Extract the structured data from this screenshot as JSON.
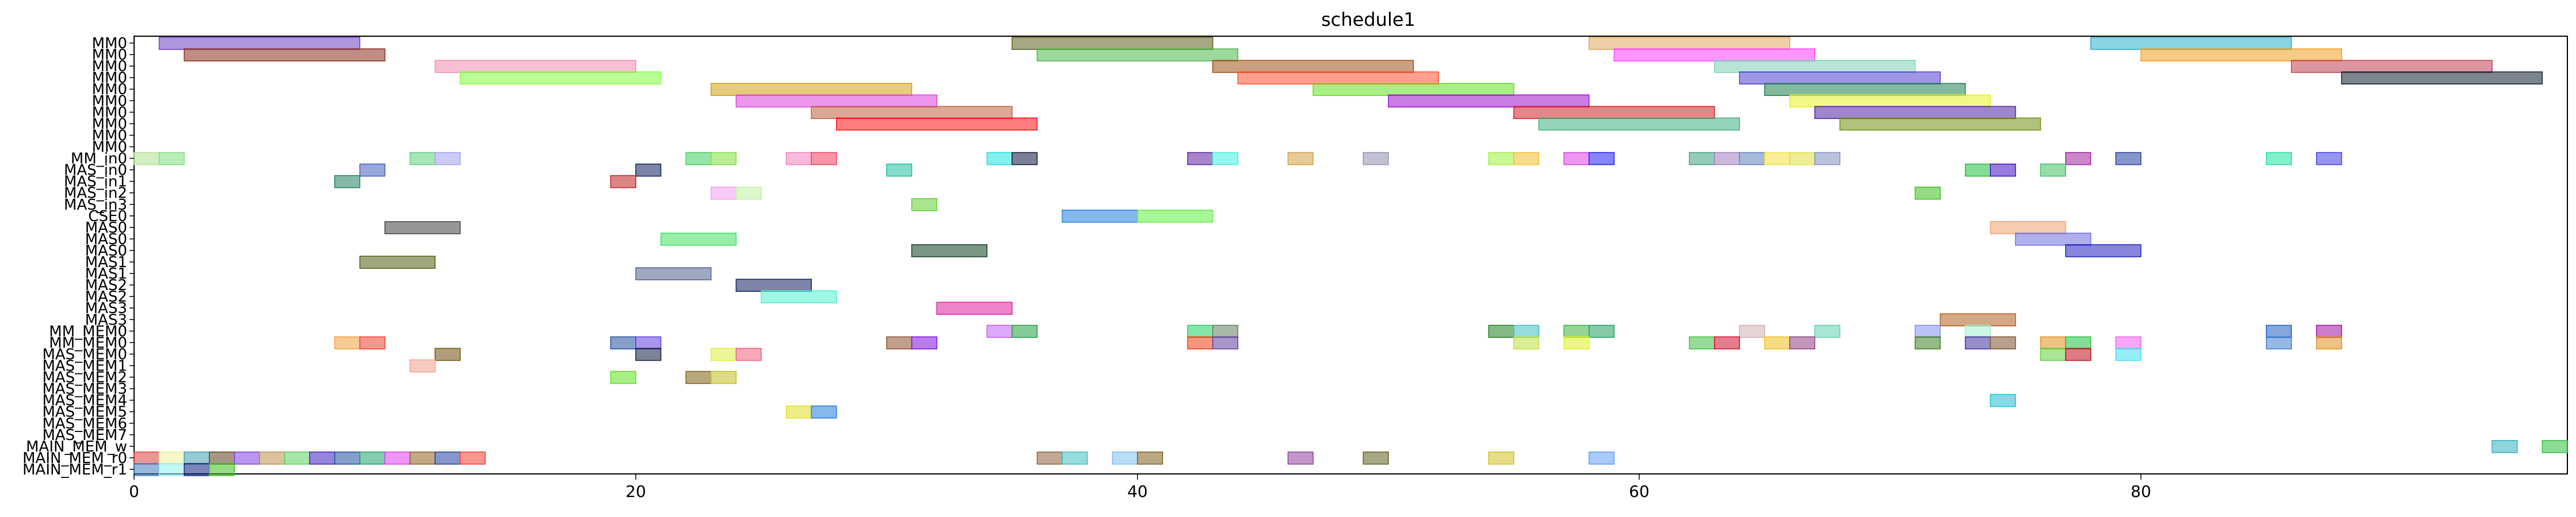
{
  "chart_data": {
    "type": "gantt",
    "title": "schedule1",
    "xlabel": "",
    "ylabel": "",
    "xlim": [
      0,
      97
    ],
    "x_ticks": [
      0,
      20,
      40,
      60,
      80
    ],
    "rows": [
      "MM0",
      "MM0",
      "MM0",
      "MM0",
      "MM0",
      "MM0",
      "MM0",
      "MM0",
      "MM0",
      "MM0",
      "MM_in0",
      "MAS_in0",
      "MAS_in1",
      "MAS_in2",
      "MAS_in3",
      "CSE0",
      "MAS0",
      "MAS0",
      "MAS0",
      "MAS1",
      "MAS1",
      "MAS2",
      "MAS2",
      "MAS3",
      "MAS3",
      "MM_MEM0",
      "MM_MEM0",
      "MAS_MEM0",
      "MAS_MEM1",
      "MAS_MEM2",
      "MAS_MEM3",
      "MAS_MEM4",
      "MAS_MEM5",
      "MAS_MEM6",
      "MAS_MEM7",
      "MAIN_MEM_w",
      "MAIN_MEM_r0",
      "MAIN_MEM_r1"
    ],
    "tasks": [
      {
        "row": 0,
        "start": 1,
        "end": 9,
        "color": "#6a3fbf"
      },
      {
        "row": 0,
        "start": 35,
        "end": 43,
        "color": "#5f5f1f"
      },
      {
        "row": 0,
        "start": 58,
        "end": 66,
        "color": "#e0a860"
      },
      {
        "row": 0,
        "start": 78,
        "end": 86,
        "color": "#2aaec8"
      },
      {
        "row": 1,
        "start": 2,
        "end": 10,
        "color": "#8b2f1f"
      },
      {
        "row": 1,
        "start": 36,
        "end": 44,
        "color": "#4cb84c"
      },
      {
        "row": 1,
        "start": 59,
        "end": 67,
        "color": "#ff40ff"
      },
      {
        "row": 1,
        "start": 80,
        "end": 88,
        "color": "#f0a020"
      },
      {
        "row": 2,
        "start": 12,
        "end": 20,
        "color": "#f08ab0"
      },
      {
        "row": 2,
        "start": 43,
        "end": 51,
        "color": "#a0501a"
      },
      {
        "row": 2,
        "start": 63,
        "end": 71,
        "color": "#80d0b8"
      },
      {
        "row": 2,
        "start": 86,
        "end": 94,
        "color": "#c04050"
      },
      {
        "row": 3,
        "start": 13,
        "end": 21,
        "color": "#80ff40"
      },
      {
        "row": 3,
        "start": 44,
        "end": 52,
        "color": "#ff5030"
      },
      {
        "row": 3,
        "start": 64,
        "end": 72,
        "color": "#5040d0"
      },
      {
        "row": 3,
        "start": 88,
        "end": 96,
        "color": "#102030"
      },
      {
        "row": 4,
        "start": 23,
        "end": 31,
        "color": "#d4a010"
      },
      {
        "row": 4,
        "start": 47,
        "end": 55,
        "color": "#60e020"
      },
      {
        "row": 4,
        "start": 65,
        "end": 73,
        "color": "#208050"
      },
      {
        "row": 5,
        "start": 24,
        "end": 32,
        "color": "#e040e0"
      },
      {
        "row": 5,
        "start": 50,
        "end": 58,
        "color": "#a010d0"
      },
      {
        "row": 5,
        "start": 66,
        "end": 74,
        "color": "#e8f020"
      },
      {
        "row": 6,
        "start": 27,
        "end": 35,
        "color": "#c06040"
      },
      {
        "row": 6,
        "start": 55,
        "end": 63,
        "color": "#d02020"
      },
      {
        "row": 6,
        "start": 67,
        "end": 75,
        "color": "#5020a0"
      },
      {
        "row": 7,
        "start": 28,
        "end": 36,
        "color": "#ff1010"
      },
      {
        "row": 7,
        "start": 56,
        "end": 64,
        "color": "#40b080"
      },
      {
        "row": 7,
        "start": 68,
        "end": 76,
        "color": "#709010"
      },
      {
        "row": 10,
        "start": 0,
        "end": 1,
        "color": "#b0e090"
      },
      {
        "row": 10,
        "start": 1,
        "end": 2,
        "color": "#80e080"
      },
      {
        "row": 10,
        "start": 11,
        "end": 12,
        "color": "#60d080"
      },
      {
        "row": 10,
        "start": 12,
        "end": 13,
        "color": "#a0a0f0"
      },
      {
        "row": 10,
        "start": 22,
        "end": 23,
        "color": "#40d060"
      },
      {
        "row": 10,
        "start": 23,
        "end": 24,
        "color": "#80e040"
      },
      {
        "row": 10,
        "start": 26,
        "end": 27,
        "color": "#f080c0"
      },
      {
        "row": 10,
        "start": 27,
        "end": 28,
        "color": "#f04060"
      },
      {
        "row": 10,
        "start": 34,
        "end": 35,
        "color": "#20e0e0"
      },
      {
        "row": 10,
        "start": 35,
        "end": 36,
        "color": "#101840"
      },
      {
        "row": 10,
        "start": 42,
        "end": 43,
        "color": "#6020a0"
      },
      {
        "row": 10,
        "start": 43,
        "end": 44,
        "color": "#40f0e0"
      },
      {
        "row": 10,
        "start": 46,
        "end": 47,
        "color": "#d0a040"
      },
      {
        "row": 10,
        "start": 49,
        "end": 50,
        "color": "#9090b0"
      },
      {
        "row": 10,
        "start": 54,
        "end": 55,
        "color": "#a0f040"
      },
      {
        "row": 10,
        "start": 55,
        "end": 56,
        "color": "#f0c030"
      },
      {
        "row": 10,
        "start": 57,
        "end": 58,
        "color": "#e040e0"
      },
      {
        "row": 10,
        "start": 58,
        "end": 59,
        "color": "#2020f0"
      },
      {
        "row": 10,
        "start": 62,
        "end": 63,
        "color": "#40a080"
      },
      {
        "row": 10,
        "start": 63,
        "end": 64,
        "color": "#a080c0"
      },
      {
        "row": 10,
        "start": 64,
        "end": 65,
        "color": "#6080c0"
      },
      {
        "row": 10,
        "start": 65,
        "end": 66,
        "color": "#f0e040"
      },
      {
        "row": 10,
        "start": 66,
        "end": 67,
        "color": "#e0e040"
      },
      {
        "row": 10,
        "start": 67,
        "end": 68,
        "color": "#8090c0"
      },
      {
        "row": 10,
        "start": 77,
        "end": 78,
        "color": "#a020a0"
      },
      {
        "row": 10,
        "start": 79,
        "end": 80,
        "color": "#2040a0"
      },
      {
        "row": 10,
        "start": 85,
        "end": 86,
        "color": "#20e0a0"
      },
      {
        "row": 10,
        "start": 87,
        "end": 88,
        "color": "#4040e0"
      },
      {
        "row": 11,
        "start": 9,
        "end": 10,
        "color": "#4060c0"
      },
      {
        "row": 11,
        "start": 20,
        "end": 21,
        "color": "#102060"
      },
      {
        "row": 11,
        "start": 30,
        "end": 31,
        "color": "#20c0a0"
      },
      {
        "row": 11,
        "start": 73,
        "end": 74,
        "color": "#20c040"
      },
      {
        "row": 11,
        "start": 74,
        "end": 75,
        "color": "#4010c0"
      },
      {
        "row": 11,
        "start": 76,
        "end": 77,
        "color": "#40c060"
      },
      {
        "row": 12,
        "start": 8,
        "end": 9,
        "color": "#208060"
      },
      {
        "row": 12,
        "start": 19,
        "end": 20,
        "color": "#c02020"
      },
      {
        "row": 13,
        "start": 23,
        "end": 24,
        "color": "#f0a0f0"
      },
      {
        "row": 13,
        "start": 24,
        "end": 25,
        "color": "#c0f0a0"
      },
      {
        "row": 13,
        "start": 71,
        "end": 72,
        "color": "#40c020"
      },
      {
        "row": 14,
        "start": 31,
        "end": 32,
        "color": "#60d030"
      },
      {
        "row": 15,
        "start": 37,
        "end": 40,
        "color": "#2080e0"
      },
      {
        "row": 15,
        "start": 40,
        "end": 43,
        "color": "#60f040"
      },
      {
        "row": 16,
        "start": 10,
        "end": 13,
        "color": "#404040"
      },
      {
        "row": 16,
        "start": 74,
        "end": 77,
        "color": "#f0a070"
      },
      {
        "row": 17,
        "start": 21,
        "end": 24,
        "color": "#40e060"
      },
      {
        "row": 17,
        "start": 75,
        "end": 78,
        "color": "#7070e0"
      },
      {
        "row": 18,
        "start": 31,
        "end": 34,
        "color": "#104020"
      },
      {
        "row": 18,
        "start": 77,
        "end": 80,
        "color": "#2020c0"
      },
      {
        "row": 19,
        "start": 9,
        "end": 12,
        "color": "#506010"
      },
      {
        "row": 20,
        "start": 20,
        "end": 23,
        "color": "#506090"
      },
      {
        "row": 21,
        "start": 24,
        "end": 27,
        "color": "#102060"
      },
      {
        "row": 22,
        "start": 25,
        "end": 28,
        "color": "#50f0d0"
      },
      {
        "row": 23,
        "start": 32,
        "end": 35,
        "color": "#e020a0"
      },
      {
        "row": 24,
        "start": 72,
        "end": 75,
        "color": "#b06020"
      },
      {
        "row": 25,
        "start": 34,
        "end": 35,
        "color": "#c060f0"
      },
      {
        "row": 25,
        "start": 35,
        "end": 36,
        "color": "#20a040"
      },
      {
        "row": 25,
        "start": 42,
        "end": 43,
        "color": "#20d060"
      },
      {
        "row": 25,
        "start": 43,
        "end": 44,
        "color": "#608060"
      },
      {
        "row": 25,
        "start": 54,
        "end": 55,
        "color": "#208020"
      },
      {
        "row": 25,
        "start": 55,
        "end": 56,
        "color": "#40c0c0"
      },
      {
        "row": 25,
        "start": 57,
        "end": 58,
        "color": "#40b040"
      },
      {
        "row": 25,
        "start": 58,
        "end": 59,
        "color": "#20a060"
      },
      {
        "row": 25,
        "start": 64,
        "end": 65,
        "color": "#d0b0b0"
      },
      {
        "row": 25,
        "start": 67,
        "end": 68,
        "color": "#60d0b0"
      },
      {
        "row": 25,
        "start": 71,
        "end": 72,
        "color": "#8090f0"
      },
      {
        "row": 25,
        "start": 73,
        "end": 74,
        "color": "#a0f0d0"
      },
      {
        "row": 25,
        "start": 85,
        "end": 86,
        "color": "#2060c0"
      },
      {
        "row": 25,
        "start": 87,
        "end": 88,
        "color": "#a010a0"
      },
      {
        "row": 26,
        "start": 8,
        "end": 9,
        "color": "#f0a040"
      },
      {
        "row": 26,
        "start": 9,
        "end": 10,
        "color": "#f04030"
      },
      {
        "row": 26,
        "start": 19,
        "end": 20,
        "color": "#2050a0"
      },
      {
        "row": 26,
        "start": 20,
        "end": 21,
        "color": "#6040e0"
      },
      {
        "row": 26,
        "start": 30,
        "end": 31,
        "color": "#905030"
      },
      {
        "row": 26,
        "start": 31,
        "end": 32,
        "color": "#8010e0"
      },
      {
        "row": 26,
        "start": 42,
        "end": 43,
        "color": "#f04010"
      },
      {
        "row": 26,
        "start": 43,
        "end": 44,
        "color": "#6040a0"
      },
      {
        "row": 26,
        "start": 55,
        "end": 56,
        "color": "#c0e040"
      },
      {
        "row": 26,
        "start": 57,
        "end": 58,
        "color": "#e0f020"
      },
      {
        "row": 26,
        "start": 62,
        "end": 63,
        "color": "#40c040"
      },
      {
        "row": 26,
        "start": 63,
        "end": 64,
        "color": "#d01030"
      },
      {
        "row": 26,
        "start": 65,
        "end": 66,
        "color": "#f0c020"
      },
      {
        "row": 26,
        "start": 66,
        "end": 67,
        "color": "#904080"
      },
      {
        "row": 26,
        "start": 71,
        "end": 72,
        "color": "#408020"
      },
      {
        "row": 26,
        "start": 73,
        "end": 74,
        "color": "#4030a0"
      },
      {
        "row": 26,
        "start": 74,
        "end": 75,
        "color": "#805030"
      },
      {
        "row": 26,
        "start": 76,
        "end": 77,
        "color": "#e09020"
      },
      {
        "row": 26,
        "start": 77,
        "end": 78,
        "color": "#20c040"
      },
      {
        "row": 26,
        "start": 79,
        "end": 80,
        "color": "#f060f0"
      },
      {
        "row": 26,
        "start": 85,
        "end": 86,
        "color": "#4080d0"
      },
      {
        "row": 26,
        "start": 87,
        "end": 88,
        "color": "#e09020"
      },
      {
        "row": 27,
        "start": 12,
        "end": 13,
        "color": "#705010"
      },
      {
        "row": 27,
        "start": 20,
        "end": 21,
        "color": "#102040"
      },
      {
        "row": 27,
        "start": 23,
        "end": 24,
        "color": "#e0f040"
      },
      {
        "row": 27,
        "start": 24,
        "end": 25,
        "color": "#f06080"
      },
      {
        "row": 27,
        "start": 76,
        "end": 77,
        "color": "#60d040"
      },
      {
        "row": 27,
        "start": 77,
        "end": 78,
        "color": "#c01020"
      },
      {
        "row": 27,
        "start": 79,
        "end": 80,
        "color": "#40e0f0"
      },
      {
        "row": 28,
        "start": 11,
        "end": 12,
        "color": "#f0a090"
      },
      {
        "row": 29,
        "start": 19,
        "end": 20,
        "color": "#60e020"
      },
      {
        "row": 29,
        "start": 22,
        "end": 23,
        "color": "#806010"
      },
      {
        "row": 29,
        "start": 23,
        "end": 24,
        "color": "#c0c020"
      },
      {
        "row": 31,
        "start": 74,
        "end": 75,
        "color": "#20c0d0"
      },
      {
        "row": 32,
        "start": 26,
        "end": 27,
        "color": "#e0e020"
      },
      {
        "row": 32,
        "start": 27,
        "end": 28,
        "color": "#2080e0"
      },
      {
        "row": 35,
        "start": 94,
        "end": 95,
        "color": "#30b0c0"
      },
      {
        "row": 35,
        "start": 96,
        "end": 97,
        "color": "#30c040"
      },
      {
        "row": 36,
        "start": 0,
        "end": 1,
        "color": "#e04040"
      },
      {
        "row": 36,
        "start": 1,
        "end": 2,
        "color": "#f0f0a0"
      },
      {
        "row": 36,
        "start": 2,
        "end": 3,
        "color": "#40a0b0"
      },
      {
        "row": 36,
        "start": 3,
        "end": 4,
        "color": "#604020"
      },
      {
        "row": 36,
        "start": 4,
        "end": 5,
        "color": "#8040e0"
      },
      {
        "row": 36,
        "start": 5,
        "end": 6,
        "color": "#c09050"
      },
      {
        "row": 36,
        "start": 6,
        "end": 7,
        "color": "#60d060"
      },
      {
        "row": 36,
        "start": 7,
        "end": 8,
        "color": "#4020c0"
      },
      {
        "row": 36,
        "start": 8,
        "end": 9,
        "color": "#2050a0"
      },
      {
        "row": 36,
        "start": 9,
        "end": 10,
        "color": "#20a070"
      },
      {
        "row": 36,
        "start": 10,
        "end": 11,
        "color": "#e040f0"
      },
      {
        "row": 36,
        "start": 11,
        "end": 12,
        "color": "#906020"
      },
      {
        "row": 36,
        "start": 12,
        "end": 13,
        "color": "#2040a0"
      },
      {
        "row": 36,
        "start": 13,
        "end": 14,
        "color": "#f04030"
      },
      {
        "row": 36,
        "start": 36,
        "end": 37,
        "color": "#906040"
      },
      {
        "row": 36,
        "start": 37,
        "end": 38,
        "color": "#40c0c0"
      },
      {
        "row": 36,
        "start": 39,
        "end": 40,
        "color": "#80c0f0"
      },
      {
        "row": 36,
        "start": 40,
        "end": 41,
        "color": "#806020"
      },
      {
        "row": 36,
        "start": 46,
        "end": 47,
        "color": "#9040a0"
      },
      {
        "row": 36,
        "start": 49,
        "end": 50,
        "color": "#606020"
      },
      {
        "row": 36,
        "start": 54,
        "end": 55,
        "color": "#d0c020"
      },
      {
        "row": 36,
        "start": 58,
        "end": 59,
        "color": "#60a0f0"
      },
      {
        "row": 37,
        "start": 0,
        "end": 1,
        "color": "#4080c0"
      },
      {
        "row": 37,
        "start": 1,
        "end": 2,
        "color": "#90f0f0"
      },
      {
        "row": 37,
        "start": 2,
        "end": 3,
        "color": "#102080"
      },
      {
        "row": 37,
        "start": 3,
        "end": 4,
        "color": "#40c020"
      }
    ]
  }
}
